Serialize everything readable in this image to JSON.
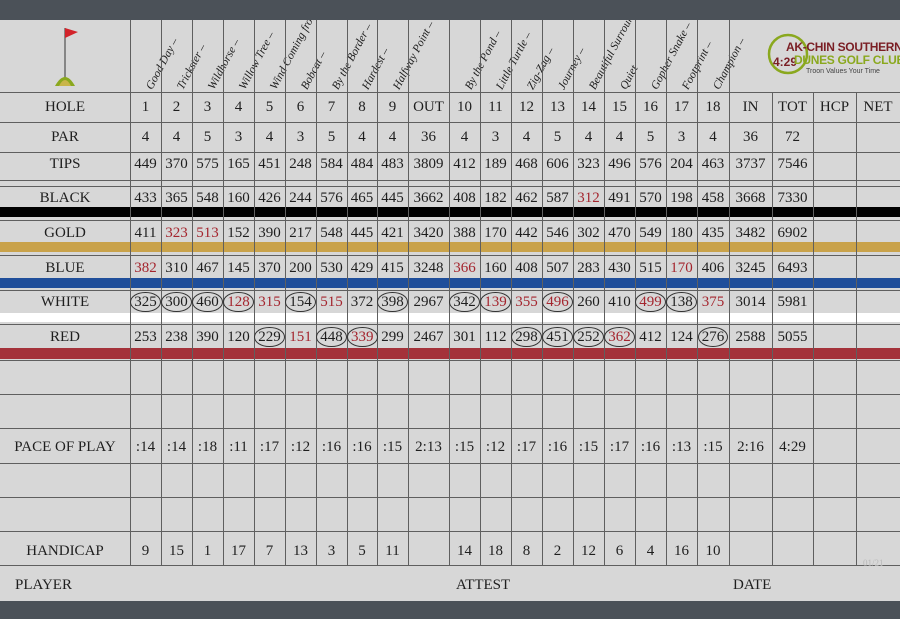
{
  "club": {
    "time": "4:29",
    "name_line1": "AK-CHIN SOUTHERN",
    "name_line2": "DUNES GOLF CLUB",
    "tagline": "Troon Values Your Time",
    "logo_color": "#8aa81e"
  },
  "hole_names": [
    "Good Day –",
    "Trickster –",
    "Wildhorse –",
    "Willow Tree –",
    "Wind Coming from All Directions –",
    "Bobcat –",
    "By the Border –",
    "Hardest –",
    "Halfway Point –",
    "By the Pond –",
    "Little Turtle –",
    "Zig-Zag –",
    "Journey –",
    "Beautiful Surroundings –",
    "Quiet",
    "Gopher Snake –",
    "Footprint –",
    "Champion –"
  ],
  "headers": [
    "HOLE",
    "1",
    "2",
    "3",
    "4",
    "5",
    "6",
    "7",
    "8",
    "9",
    "OUT",
    "10",
    "11",
    "12",
    "13",
    "14",
    "15",
    "16",
    "17",
    "18",
    "IN",
    "TOT",
    "HCP",
    "NET"
  ],
  "rows": [
    {
      "label": "PAR",
      "cells": [
        "4",
        "4",
        "5",
        "3",
        "4",
        "3",
        "5",
        "4",
        "4",
        "36",
        "4",
        "3",
        "4",
        "5",
        "4",
        "4",
        "5",
        "3",
        "4",
        "36",
        "72",
        "",
        ""
      ]
    },
    {
      "label": "TIPS",
      "cells": [
        "449",
        "370",
        "575",
        "165",
        "451",
        "248",
        "584",
        "484",
        "483",
        "3809",
        "412",
        "189",
        "468",
        "606",
        "323",
        "496",
        "576",
        "204",
        "463",
        "3737",
        "7546",
        "",
        ""
      ]
    },
    {
      "label": "BLACK",
      "cells": [
        "433",
        "365",
        "548",
        "160",
        "426",
        "244",
        "576",
        "465",
        "445",
        "3662",
        "408",
        "182",
        "462",
        "587",
        "312",
        "491",
        "570",
        "198",
        "458",
        "3668",
        "7330",
        "",
        ""
      ]
    },
    {
      "label": "GOLD",
      "cells": [
        "411",
        "323",
        "513",
        "152",
        "390",
        "217",
        "548",
        "445",
        "421",
        "3420",
        "388",
        "170",
        "442",
        "546",
        "302",
        "470",
        "549",
        "180",
        "435",
        "3482",
        "6902",
        "",
        ""
      ]
    },
    {
      "label": "BLUE",
      "cells": [
        "382",
        "310",
        "467",
        "145",
        "370",
        "200",
        "530",
        "429",
        "415",
        "3248",
        "366",
        "160",
        "408",
        "507",
        "283",
        "430",
        "515",
        "170",
        "406",
        "3245",
        "6493",
        "",
        ""
      ]
    },
    {
      "label": "WHITE",
      "cells": [
        "325",
        "300",
        "460",
        "128",
        "315",
        "154",
        "515",
        "372",
        "398",
        "2967",
        "342",
        "139",
        "355",
        "496",
        "260",
        "410",
        "499",
        "138",
        "375",
        "3014",
        "5981",
        "",
        ""
      ]
    },
    {
      "label": "RED",
      "cells": [
        "253",
        "238",
        "390",
        "120",
        "229",
        "151",
        "448",
        "339",
        "299",
        "2467",
        "301",
        "112",
        "298",
        "451",
        "252",
        "362",
        "412",
        "124",
        "276",
        "2588",
        "5055",
        "",
        ""
      ]
    },
    {
      "label": "PACE OF PLAY",
      "cells": [
        ":14",
        ":14",
        ":18",
        ":11",
        ":17",
        ":12",
        ":16",
        ":16",
        ":15",
        "2:13",
        ":15",
        ":12",
        ":17",
        ":16",
        ":15",
        ":17",
        ":16",
        ":13",
        ":15",
        "2:16",
        "4:29",
        "",
        ""
      ]
    },
    {
      "label": "HANDICAP",
      "cells": [
        "9",
        "15",
        "1",
        "17",
        "7",
        "13",
        "3",
        "5",
        "11",
        "",
        "14",
        "18",
        "8",
        "2",
        "12",
        "6",
        "4",
        "16",
        "10",
        "",
        "",
        "",
        ""
      ]
    }
  ],
  "highlights": {
    "BLACK": {
      "red": [
        14
      ],
      "circle": []
    },
    "GOLD": {
      "red": [
        1,
        2
      ],
      "circle": []
    },
    "BLUE": {
      "red": [
        0,
        10,
        17
      ],
      "circle": []
    },
    "WHITE": {
      "red": [
        3,
        4,
        6,
        11,
        12,
        13,
        16,
        18
      ],
      "circle": [
        0,
        1,
        2,
        3,
        5,
        8,
        10,
        11,
        13,
        16,
        17
      ]
    },
    "RED": {
      "red": [
        5,
        7,
        15
      ],
      "circle": [
        4,
        6,
        7,
        12,
        13,
        14,
        15,
        18
      ]
    }
  },
  "tee_colors": {
    "black": "#000000",
    "gold": "#c9a24a",
    "blue": "#1f4e9a",
    "white": "#ffffff",
    "red": "#a4323a"
  },
  "footer": {
    "player": "PLAYER",
    "attest": "ATTEST",
    "date": "DATE",
    "code": "01/21"
  }
}
